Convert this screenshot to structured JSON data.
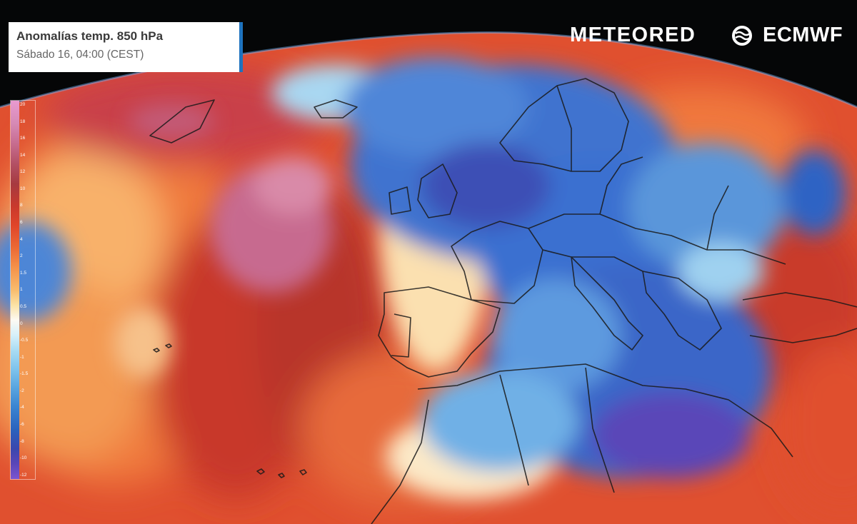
{
  "header": {
    "title": "Anomalías temp. 850 hPa",
    "subtitle": "Sábado 16, 04:00 (CEST)"
  },
  "brands": {
    "meteored": "METEORED",
    "ecmwf": "ECMWF"
  },
  "legend": {
    "ticks": [
      "20",
      "18",
      "16",
      "14",
      "12",
      "10",
      "8",
      "6",
      "4",
      "2",
      "1.5",
      "1",
      "0.5",
      "0",
      "-0.5",
      "-1",
      "-1.5",
      "-2",
      "-4",
      "-6",
      "-8",
      "-10",
      "-12"
    ]
  },
  "colors": {
    "title_accent": "#1e73be",
    "warm_anomaly": "#d9442d",
    "strong_warm_anomaly": "#c86e92",
    "cold_anomaly": "#3a6fd0",
    "strong_cold_anomaly": "#5a46b8"
  }
}
